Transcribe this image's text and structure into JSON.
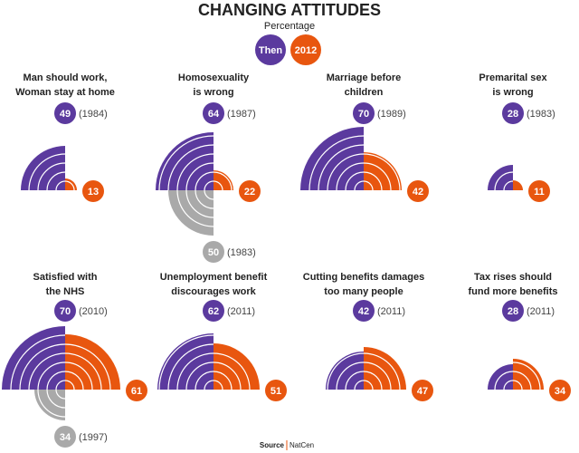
{
  "chart_data": {
    "type": "quarter-circle",
    "title": "CHANGING ATTITUDES",
    "subtitle": "Percentage",
    "series": [
      {
        "name": "Then",
        "color": "#5b3a9e"
      },
      {
        "name": "2012",
        "color": "#e8560f"
      }
    ],
    "earlier_color": "#a9a9a9",
    "panels": [
      {
        "title": [
          "Man should work,",
          "Woman stay at home"
        ],
        "then": 49,
        "then_year": "(1984)",
        "now": 13
      },
      {
        "title": [
          "Homosexuality",
          "is wrong"
        ],
        "then": 64,
        "then_year": "(1987)",
        "now": 22,
        "earlier": 50,
        "earlier_year": "(1983)"
      },
      {
        "title": [
          "Marriage before",
          "children"
        ],
        "then": 70,
        "then_year": "(1989)",
        "now": 42
      },
      {
        "title": [
          "Premarital sex",
          "is wrong"
        ],
        "then": 28,
        "then_year": "(1983)",
        "now": 11
      },
      {
        "title": [
          "Satisfied with",
          "the NHS"
        ],
        "then": 70,
        "then_year": "(2010)",
        "now": 61,
        "earlier": 34,
        "earlier_year": "(1997)"
      },
      {
        "title": [
          "Unemployment benefit",
          "discourages work"
        ],
        "then": 62,
        "then_year": "(2011)",
        "now": 51
      },
      {
        "title": [
          "Cutting benefits damages",
          "too many people"
        ],
        "then": 42,
        "then_year": "(2011)",
        "now": 47
      },
      {
        "title": [
          "Tax rises should",
          "fund more benefits"
        ],
        "then": 28,
        "then_year": "(2011)",
        "now": 34
      }
    ],
    "source": [
      "Source",
      "NatCen"
    ]
  }
}
